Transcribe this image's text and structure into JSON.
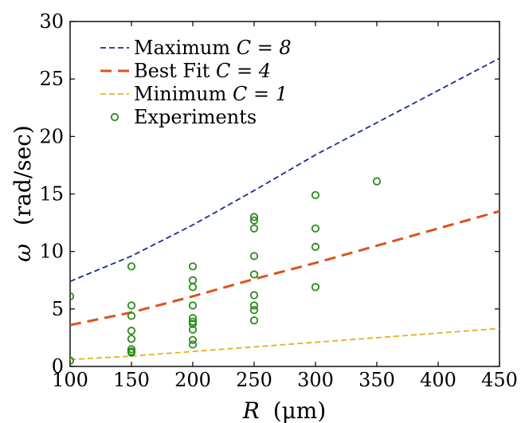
{
  "chart_data": {
    "type": "line",
    "xlabel": {
      "var": "R",
      "unit": "(μm)"
    },
    "ylabel": {
      "var": "ω",
      "unit": "(rad/sec)"
    },
    "xlim": [
      100,
      450
    ],
    "ylim": [
      0,
      30
    ],
    "xticks": [
      100,
      150,
      200,
      250,
      300,
      350,
      400,
      450
    ],
    "yticks": [
      0,
      5,
      10,
      15,
      20,
      25,
      30
    ],
    "grid": false,
    "legend_position": "top-left",
    "series": [
      {
        "name": "Maximum C = 8",
        "legend_text": "Maximum ",
        "legend_math": "C = 8",
        "kind": "line",
        "style": "dashed-fine",
        "color": "#1a2d8c",
        "x": [
          100,
          150,
          200,
          250,
          300,
          350,
          400,
          450
        ],
        "values": [
          7.4,
          9.6,
          12.3,
          15.3,
          18.4,
          21.2,
          24.0,
          26.8
        ]
      },
      {
        "name": "Best Fit C = 4",
        "legend_text": "Best Fit ",
        "legend_math": "C = 4",
        "kind": "line",
        "style": "dashed-bold",
        "color": "#d9541b",
        "x": [
          100,
          150,
          200,
          250,
          300,
          350,
          400,
          450
        ],
        "values": [
          3.6,
          4.7,
          6.1,
          7.6,
          9.0,
          10.5,
          12.0,
          13.5
        ]
      },
      {
        "name": "Minimum C = 1",
        "legend_text": "Minimum ",
        "legend_math": "C = 1",
        "kind": "line",
        "style": "dashed-fine",
        "color": "#e8b020",
        "x": [
          100,
          150,
          200,
          250,
          300,
          350,
          400,
          450
        ],
        "values": [
          0.6,
          0.9,
          1.3,
          1.7,
          2.1,
          2.5,
          2.9,
          3.3
        ]
      },
      {
        "name": "Experiments",
        "legend_text": "Experiments",
        "legend_math": "",
        "kind": "scatter",
        "color": "#2a8a1a",
        "points": [
          [
            100,
            6.1
          ],
          [
            100,
            0.5
          ],
          [
            150,
            8.7
          ],
          [
            150,
            5.3
          ],
          [
            150,
            4.4
          ],
          [
            150,
            3.1
          ],
          [
            150,
            2.4
          ],
          [
            150,
            1.5
          ],
          [
            150,
            1.3
          ],
          [
            150,
            1.2
          ],
          [
            200,
            8.7
          ],
          [
            200,
            7.5
          ],
          [
            200,
            6.9
          ],
          [
            200,
            5.3
          ],
          [
            200,
            4.2
          ],
          [
            200,
            3.9
          ],
          [
            200,
            3.7
          ],
          [
            200,
            3.2
          ],
          [
            200,
            2.3
          ],
          [
            200,
            1.9
          ],
          [
            250,
            13.0
          ],
          [
            250,
            12.7
          ],
          [
            250,
            12.0
          ],
          [
            250,
            9.6
          ],
          [
            250,
            8.0
          ],
          [
            250,
            6.2
          ],
          [
            250,
            5.3
          ],
          [
            250,
            4.9
          ],
          [
            250,
            4.0
          ],
          [
            300,
            14.9
          ],
          [
            300,
            12.0
          ],
          [
            300,
            10.4
          ],
          [
            300,
            6.9
          ],
          [
            350,
            16.1
          ]
        ]
      }
    ]
  }
}
